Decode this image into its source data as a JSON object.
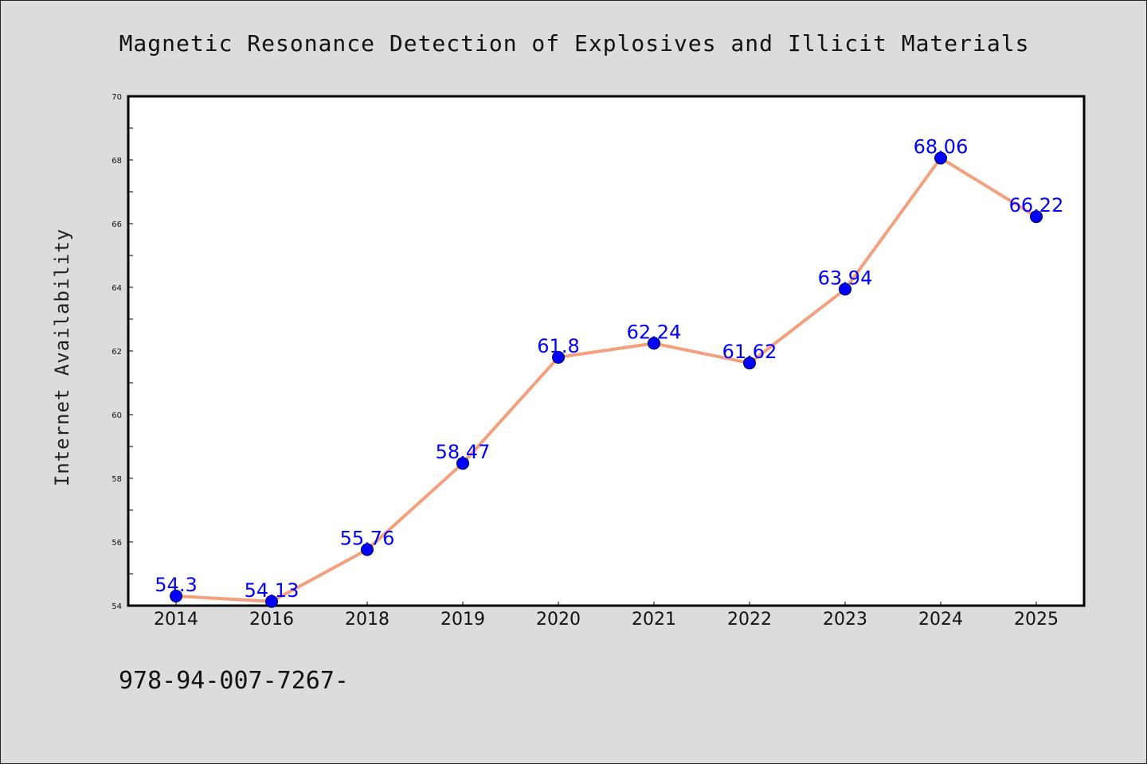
{
  "colors": {
    "background": "#dcdcdc",
    "plot_background": "#ffffff",
    "line": "#f4a07c",
    "marker": "#0000ff",
    "data_label": "#0000ff"
  },
  "footnote": "978-94-007-7267-",
  "chart_data": {
    "type": "line",
    "title": "Magnetic Resonance Detection of Explosives and Illicit Materials",
    "xlabel": "",
    "ylabel": "Internet Availability",
    "categories": [
      "2014",
      "2016",
      "2018",
      "2019",
      "2020",
      "2021",
      "2022",
      "2023",
      "2024",
      "2025"
    ],
    "series": [
      {
        "values": [
          54.3,
          54.13,
          55.76,
          58.47,
          61.8,
          62.24,
          61.62,
          63.94,
          68.06,
          66.22
        ],
        "labels": [
          "54.3",
          "54.13",
          "55.76",
          "58.47",
          "61.8",
          "62.24",
          "61.62",
          "63.94",
          "68.06",
          "66.22"
        ]
      }
    ],
    "ylim": [
      54,
      70
    ],
    "yticks": [
      54,
      56,
      58,
      60,
      62,
      64,
      66,
      68,
      70
    ],
    "ytick_labels": [
      "54",
      "56",
      "58",
      "60",
      "62",
      "64",
      "66",
      "68",
      "70"
    ],
    "grid": false,
    "legend": "none"
  }
}
